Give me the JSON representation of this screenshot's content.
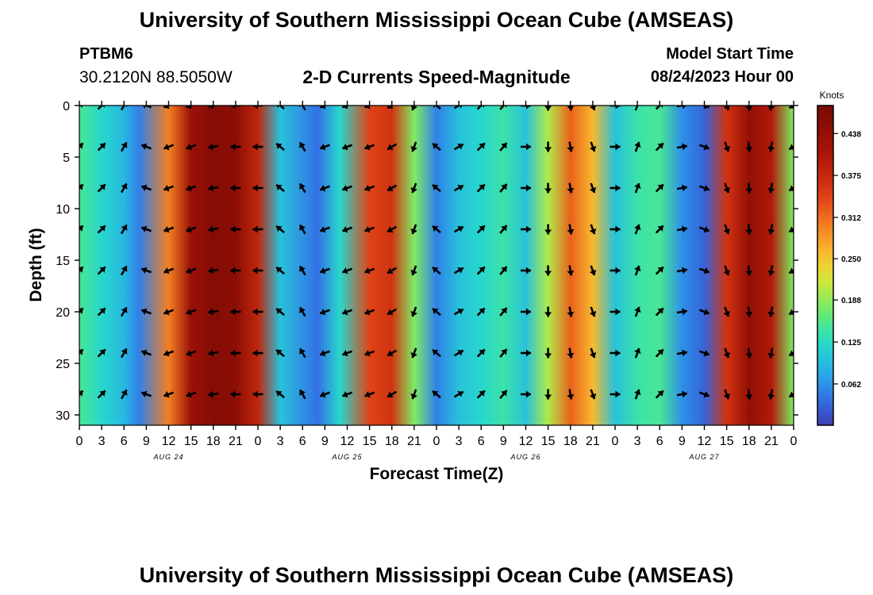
{
  "header": {
    "title": "University of Southern Mississippi Ocean Cube (AMSEAS)",
    "station": "PTBM6",
    "coords": "30.2120N  88.5050W",
    "subtitle": "2-D Currents Speed-Magnitude",
    "model_start_label": "Model Start Time",
    "model_start_value": "08/24/2023 Hour 00"
  },
  "footer": {
    "title": "University of Southern Mississippi Ocean Cube (AMSEAS)"
  },
  "colors": {
    "low": "#3d3fb0",
    "high": "#7a0a04",
    "arrow": "#000000"
  },
  "chart_data": {
    "type": "heatmap",
    "title": "2-D Currents Speed-Magnitude",
    "xlabel": "Forecast Time(Z)",
    "ylabel": "Depth (ft)",
    "x_ticks": [
      "0",
      "3",
      "6",
      "9",
      "12",
      "15",
      "18",
      "21",
      "0",
      "3",
      "6",
      "9",
      "12",
      "15",
      "18",
      "21",
      "0",
      "3",
      "6",
      "9",
      "12",
      "15",
      "18",
      "21",
      "0",
      "3",
      "6",
      "9",
      "12",
      "15",
      "18",
      "21",
      "0"
    ],
    "x_range_hours": [
      0,
      96
    ],
    "date_labels": [
      {
        "text": "AUG 24",
        "hour": 12
      },
      {
        "text": "AUG 25",
        "hour": 36
      },
      {
        "text": "AUG 26",
        "hour": 60
      },
      {
        "text": "AUG 27",
        "hour": 84
      }
    ],
    "y_ticks": [
      0,
      5,
      10,
      15,
      20,
      25,
      30
    ],
    "y_range_ft": [
      0,
      31
    ],
    "colorbar": {
      "label": "Knots",
      "ticks": [
        "0.438",
        "0.375",
        "0.312",
        "0.250",
        "0.188",
        "0.125",
        "0.062"
      ],
      "tick_values": [
        0.438,
        0.375,
        0.312,
        0.25,
        0.188,
        0.125,
        0.062
      ],
      "range": [
        0,
        0.48
      ]
    },
    "speed_knots_by_hour": [
      {
        "h": 0,
        "s": 0.15
      },
      {
        "h": 3,
        "s": 0.12
      },
      {
        "h": 6,
        "s": 0.09
      },
      {
        "h": 8,
        "s": 0.05
      },
      {
        "h": 12,
        "s": 0.3
      },
      {
        "h": 15,
        "s": 0.43
      },
      {
        "h": 18,
        "s": 0.46
      },
      {
        "h": 21,
        "s": 0.45
      },
      {
        "h": 24,
        "s": 0.38
      },
      {
        "h": 27,
        "s": 0.1
      },
      {
        "h": 32,
        "s": 0.04
      },
      {
        "h": 35,
        "s": 0.12
      },
      {
        "h": 39,
        "s": 0.34
      },
      {
        "h": 42,
        "s": 0.36
      },
      {
        "h": 45,
        "s": 0.18
      },
      {
        "h": 48,
        "s": 0.05
      },
      {
        "h": 51,
        "s": 0.1
      },
      {
        "h": 54,
        "s": 0.12
      },
      {
        "h": 57,
        "s": 0.14
      },
      {
        "h": 60,
        "s": 0.1
      },
      {
        "h": 63,
        "s": 0.2
      },
      {
        "h": 66,
        "s": 0.32
      },
      {
        "h": 69,
        "s": 0.26
      },
      {
        "h": 72,
        "s": 0.1
      },
      {
        "h": 75,
        "s": 0.14
      },
      {
        "h": 78,
        "s": 0.15
      },
      {
        "h": 81,
        "s": 0.06
      },
      {
        "h": 84,
        "s": 0.03
      },
      {
        "h": 87,
        "s": 0.36
      },
      {
        "h": 90,
        "s": 0.44
      },
      {
        "h": 93,
        "s": 0.4
      },
      {
        "h": 96,
        "s": 0.18
      }
    ],
    "arrow_hours": [
      0,
      3,
      6,
      9,
      12,
      15,
      18,
      21,
      24,
      27,
      30,
      33,
      36,
      39,
      42,
      45,
      48,
      51,
      54,
      57,
      60,
      63,
      66,
      69,
      72,
      75,
      78,
      81,
      84,
      87,
      90,
      93,
      96
    ],
    "arrow_depths_ft": [
      0,
      4,
      8,
      12,
      16,
      20,
      24,
      28
    ],
    "arrow_direction_deg_by_hour": [
      45,
      45,
      30,
      290,
      250,
      250,
      260,
      270,
      270,
      310,
      330,
      250,
      250,
      250,
      240,
      200,
      310,
      60,
      45,
      40,
      90,
      180,
      170,
      160,
      90,
      20,
      45,
      80,
      110,
      160,
      175,
      190,
      240
    ]
  }
}
